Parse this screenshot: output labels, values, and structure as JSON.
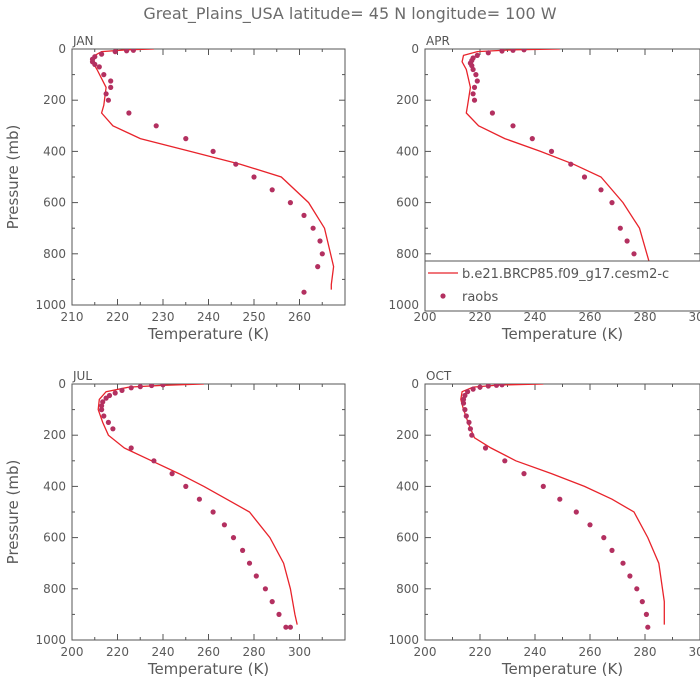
{
  "title": "Great_Plains_USA  latitude= 45 N longitude= 100 W",
  "colors": {
    "model": "#e8232b",
    "obs": "#b33060",
    "axis": "#555555"
  },
  "legend": {
    "model_label": "b.e21.BRCP85.f09_g17.cesm2-c",
    "obs_label": "raobs",
    "placement": "inside APR panel, lower portion"
  },
  "chart_data": [
    {
      "type": "line",
      "panel": "JAN",
      "title": "JAN",
      "xlabel": "Temperature (K)",
      "ylabel": "Pressure (mb)",
      "xlim": [
        210,
        270
      ],
      "ylim": [
        0,
        1000
      ],
      "y_inverted": true,
      "xticks": [
        210,
        220,
        230,
        240,
        250,
        260,
        270
      ],
      "yticks": [
        0,
        200,
        400,
        600,
        800,
        1000
      ],
      "series": [
        {
          "name": "b.e21.BRCP85.f09_g17.cesm2-c",
          "kind": "line",
          "x": [
            228,
            222,
            216.5,
            215,
            214.5,
            215.5,
            217.5,
            217,
            216.5,
            219,
            225,
            236,
            247,
            256,
            262,
            265.5,
            267.5,
            267,
            267
          ],
          "y": [
            0,
            3,
            10,
            25,
            50,
            80,
            150,
            220,
            250,
            300,
            350,
            400,
            450,
            500,
            600,
            700,
            850,
            920,
            940
          ]
        },
        {
          "name": "raobs",
          "kind": "scatter",
          "x": [
            223.5,
            222,
            219.5,
            216.5,
            215,
            214.5,
            214.5,
            215,
            216,
            217,
            218.5,
            218.5,
            217.5,
            218,
            222.5,
            228.5,
            235,
            241,
            246,
            250,
            254,
            258,
            261,
            263,
            264.5,
            265,
            264,
            261
          ],
          "y": [
            5,
            7,
            10,
            20,
            30,
            40,
            50,
            60,
            70,
            100,
            125,
            150,
            175,
            200,
            250,
            300,
            350,
            400,
            450,
            500,
            550,
            600,
            650,
            700,
            750,
            800,
            850,
            950
          ]
        }
      ]
    },
    {
      "type": "line",
      "panel": "APR",
      "title": "APR",
      "xlabel": "Temperature (K)",
      "ylabel": "",
      "xlim": [
        200,
        300
      ],
      "ylim": [
        0,
        1000
      ],
      "y_inverted": true,
      "xticks": [
        200,
        220,
        240,
        260,
        280,
        300
      ],
      "yticks": [
        0,
        200,
        400,
        600,
        800,
        1000
      ],
      "series": [
        {
          "name": "b.e21.BRCP85.f09_g17.cesm2-c",
          "kind": "line",
          "x": [
            249,
            232,
            219,
            214,
            213.5,
            215,
            216.5,
            215.5,
            215,
            219.5,
            229,
            242,
            254,
            264,
            272,
            278,
            282,
            284,
            283
          ],
          "y": [
            0,
            3,
            10,
            25,
            50,
            80,
            150,
            220,
            250,
            300,
            350,
            400,
            450,
            500,
            600,
            700,
            850,
            920,
            940
          ]
        },
        {
          "name": "raobs",
          "kind": "scatter",
          "x": [
            236,
            232,
            228,
            223,
            219,
            217.5,
            217,
            216.5,
            217,
            217.5,
            218.5,
            219,
            218,
            217.5,
            218,
            224.5,
            232,
            239,
            246,
            253,
            258,
            264,
            268,
            271,
            273.5,
            276,
            278,
            279.5,
            280
          ],
          "y": [
            3,
            5,
            8,
            15,
            25,
            35,
            45,
            55,
            65,
            80,
            100,
            125,
            150,
            175,
            200,
            250,
            300,
            350,
            400,
            450,
            500,
            550,
            600,
            700,
            750,
            800,
            850,
            900,
            950
          ]
        }
      ]
    },
    {
      "type": "line",
      "panel": "JUL",
      "title": "JUL",
      "xlabel": "Temperature (K)",
      "ylabel": "Pressure (mb)",
      "xlim": [
        200,
        320
      ],
      "ylim": [
        0,
        1000
      ],
      "y_inverted": true,
      "xticks": [
        200,
        220,
        240,
        260,
        280,
        300,
        320
      ],
      "yticks": [
        0,
        200,
        400,
        600,
        800,
        1000
      ],
      "series": [
        {
          "name": "b.e21.BRCP85.f09_g17.cesm2-c",
          "kind": "line",
          "x": [
            258,
            240,
            225,
            215,
            212,
            211.5,
            213.5,
            216,
            223,
            235,
            247,
            258,
            268,
            278,
            287,
            293,
            296,
            298,
            299
          ],
          "y": [
            0,
            5,
            12,
            30,
            60,
            100,
            150,
            200,
            250,
            300,
            350,
            400,
            450,
            500,
            600,
            700,
            800,
            900,
            940
          ]
        },
        {
          "name": "raobs",
          "kind": "scatter",
          "x": [
            240,
            235,
            230,
            226,
            222,
            219,
            216.5,
            215,
            213.5,
            213,
            213,
            214,
            216,
            218,
            226,
            236,
            244,
            250,
            256,
            262,
            267,
            271,
            275,
            278,
            281,
            285,
            288,
            291,
            294,
            296
          ],
          "y": [
            3,
            6,
            10,
            15,
            25,
            35,
            45,
            55,
            70,
            85,
            100,
            125,
            150,
            175,
            250,
            300,
            350,
            400,
            450,
            500,
            550,
            600,
            650,
            700,
            750,
            800,
            850,
            900,
            950,
            950
          ]
        }
      ]
    },
    {
      "type": "line",
      "panel": "OCT",
      "title": "OCT",
      "xlabel": "Temperature (K)",
      "ylabel": "",
      "xlim": [
        200,
        300
      ],
      "ylim": [
        0,
        1000
      ],
      "y_inverted": true,
      "xticks": [
        200,
        220,
        240,
        260,
        280,
        300
      ],
      "yticks": [
        0,
        200,
        400,
        600,
        800,
        1000
      ],
      "series": [
        {
          "name": "b.e21.BRCP85.f09_g17.cesm2-c",
          "kind": "line",
          "x": [
            243,
            227,
            217.5,
            213.5,
            213,
            214,
            216,
            218,
            224,
            233,
            246,
            258,
            268,
            276,
            281,
            285,
            287,
            287
          ],
          "y": [
            0,
            4,
            12,
            30,
            60,
            100,
            160,
            210,
            250,
            300,
            350,
            400,
            450,
            500,
            600,
            700,
            850,
            940
          ]
        },
        {
          "name": "raobs",
          "kind": "scatter",
          "x": [
            228,
            226,
            223,
            220,
            217.5,
            215.5,
            214.5,
            214,
            214,
            214.5,
            215,
            216,
            216.5,
            217,
            222,
            229,
            236,
            243,
            249,
            255,
            260,
            265,
            268,
            272,
            274.5,
            277,
            279,
            280.5,
            281
          ],
          "y": [
            3,
            5,
            8,
            12,
            20,
            30,
            45,
            60,
            75,
            100,
            125,
            150,
            175,
            200,
            250,
            300,
            350,
            400,
            450,
            500,
            550,
            600,
            650,
            700,
            750,
            800,
            850,
            900,
            950
          ]
        }
      ]
    }
  ]
}
